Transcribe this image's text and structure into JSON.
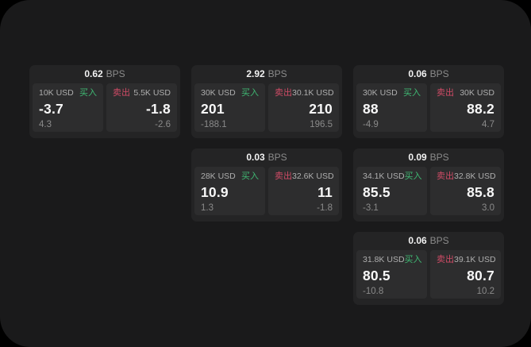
{
  "page": {
    "background_color": "#000000",
    "surface_color": "#1a1a1b",
    "card_color": "#242425",
    "panel_color": "#2d2d2e"
  },
  "labels": {
    "buy": "买入",
    "sell": "卖出",
    "bps_unit": "BPS"
  },
  "colors": {
    "buy_green": "#3fb873",
    "sell_red": "#cf4b66",
    "value_white": "#f7f7f7",
    "amount_gray": "#aeaeae",
    "delta_gray": "#8a8a8a"
  },
  "cards": [
    {
      "bps": "0.62",
      "buy": {
        "amount": "10K USD",
        "price": "-3.7",
        "delta": "4.3"
      },
      "sell": {
        "amount": "5.5K USD",
        "price": "-1.8",
        "delta": "-2.6"
      }
    },
    {
      "bps": "2.92",
      "buy": {
        "amount": "30K USD",
        "price": "201",
        "delta": "-188.1"
      },
      "sell": {
        "amount": "30.1K USD",
        "price": "210",
        "delta": "196.5"
      }
    },
    {
      "bps": "0.06",
      "buy": {
        "amount": "30K USD",
        "price": "88",
        "delta": "-4.9"
      },
      "sell": {
        "amount": "30K USD",
        "price": "88.2",
        "delta": "4.7"
      }
    },
    {
      "bps": "0.03",
      "buy": {
        "amount": "28K USD",
        "price": "10.9",
        "delta": "1.3"
      },
      "sell": {
        "amount": "32.6K USD",
        "price": "11",
        "delta": "-1.8"
      }
    },
    {
      "bps": "0.09",
      "buy": {
        "amount": "34.1K USD",
        "price": "85.5",
        "delta": "-3.1"
      },
      "sell": {
        "amount": "32.8K USD",
        "price": "85.8",
        "delta": "3.0"
      }
    },
    {
      "bps": "0.06",
      "buy": {
        "amount": "31.8K USD",
        "price": "80.5",
        "delta": "-10.8"
      },
      "sell": {
        "amount": "39.1K USD",
        "price": "80.7",
        "delta": "10.2"
      }
    }
  ]
}
